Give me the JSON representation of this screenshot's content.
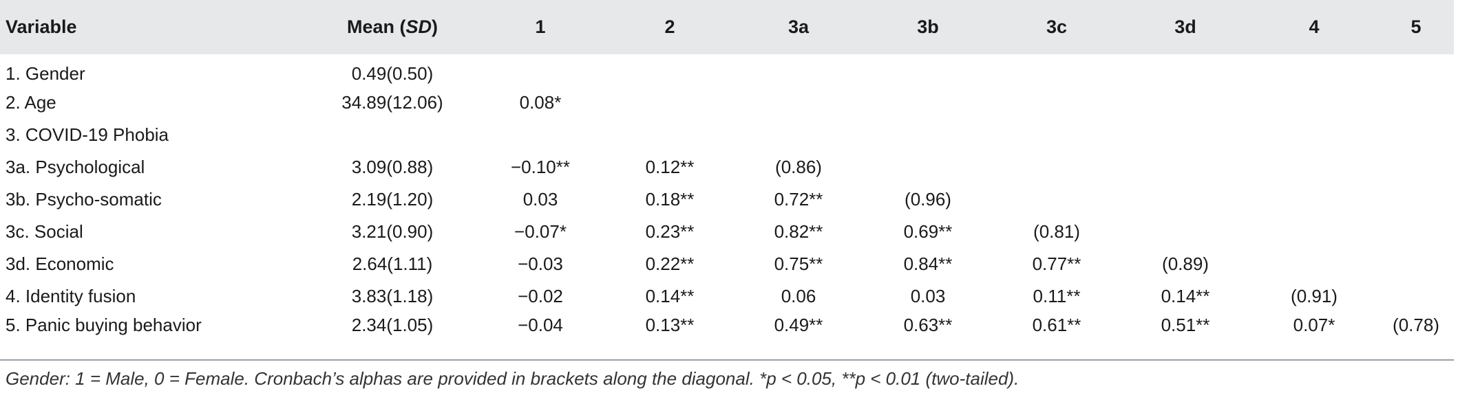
{
  "table": {
    "headers": {
      "variable": "Variable",
      "mean": "Mean (",
      "mean_sd": "SD",
      "mean_close": ")",
      "c1": "1",
      "c2": "2",
      "c3a": "3a",
      "c3b": "3b",
      "c3c": "3c",
      "c3d": "3d",
      "c4": "4",
      "c5": "5"
    },
    "rows": [
      {
        "variable": "1. Gender",
        "mean": "0.49(0.50)",
        "c1": "",
        "c2": "",
        "c3a": "",
        "c3b": "",
        "c3c": "",
        "c3d": "",
        "c4": "",
        "c5": ""
      },
      {
        "variable": "2. Age",
        "mean": "34.89(12.06)",
        "c1": "0.08*",
        "c2": "",
        "c3a": "",
        "c3b": "",
        "c3c": "",
        "c3d": "",
        "c4": "",
        "c5": ""
      },
      {
        "variable": "3. COVID-19 Phobia",
        "mean": "",
        "c1": "",
        "c2": "",
        "c3a": "",
        "c3b": "",
        "c3c": "",
        "c3d": "",
        "c4": "",
        "c5": ""
      },
      {
        "variable": "3a. Psychological",
        "mean": "3.09(0.88)",
        "c1": "−0.10**",
        "c2": "0.12**",
        "c3a": "(0.86)",
        "c3b": "",
        "c3c": "",
        "c3d": "",
        "c4": "",
        "c5": ""
      },
      {
        "variable": "3b. Psycho-somatic",
        "mean": "2.19(1.20)",
        "c1": "0.03",
        "c2": "0.18**",
        "c3a": "0.72**",
        "c3b": "(0.96)",
        "c3c": "",
        "c3d": "",
        "c4": "",
        "c5": ""
      },
      {
        "variable": "3c. Social",
        "mean": "3.21(0.90)",
        "c1": "−0.07*",
        "c2": "0.23**",
        "c3a": "0.82**",
        "c3b": "0.69**",
        "c3c": "(0.81)",
        "c3d": "",
        "c4": "",
        "c5": ""
      },
      {
        "variable": "3d. Economic",
        "mean": "2.64(1.11)",
        "c1": "−0.03",
        "c2": "0.22**",
        "c3a": "0.75**",
        "c3b": "0.84**",
        "c3c": "0.77**",
        "c3d": "(0.89)",
        "c4": "",
        "c5": ""
      },
      {
        "variable": "4. Identity fusion",
        "mean": "3.83(1.18)",
        "c1": "−0.02",
        "c2": "0.14**",
        "c3a": "0.06",
        "c3b": "0.03",
        "c3c": "0.11**",
        "c3d": "0.14**",
        "c4": "(0.91)",
        "c5": ""
      },
      {
        "variable": "5. Panic buying behavior",
        "mean": "2.34(1.05)",
        "c1": "−0.04",
        "c2": "0.13**",
        "c3a": "0.49**",
        "c3b": "0.63**",
        "c3c": "0.61**",
        "c3d": "0.51**",
        "c4": "0.07*",
        "c5": "(0.78)"
      }
    ]
  },
  "note": "Gender: 1 = Male, 0 = Female. Cronbach’s alphas are provided in brackets along the diagonal. *p < 0.05, **p < 0.01 (two-tailed)."
}
